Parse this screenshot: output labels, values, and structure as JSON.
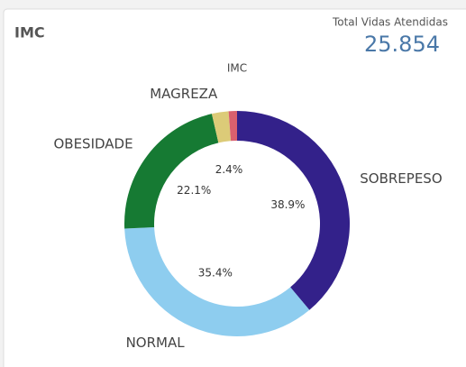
{
  "header": {
    "title": "IMC",
    "kpi_label": "Total Vidas Atendidas",
    "kpi_value": "25.854"
  },
  "chart_data": {
    "type": "donut",
    "title": "IMC",
    "categories": [
      "SOBREPESO",
      "NORMAL",
      "OBESIDADE",
      "MAGREZA",
      null
    ],
    "values": [
      38.9,
      35.4,
      22.1,
      2.4,
      1.2
    ],
    "value_labels": [
      "38.9%",
      "35.4%",
      "22.1%",
      "2.4%",
      null
    ],
    "colors": [
      "#33218a",
      "#8ecdef",
      "#167a33",
      "#dccb78",
      "#d9606e"
    ]
  }
}
